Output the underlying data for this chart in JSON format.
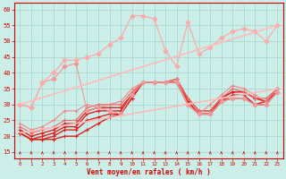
{
  "x": [
    0,
    1,
    2,
    3,
    4,
    5,
    6,
    7,
    8,
    9,
    10,
    11,
    12,
    13,
    14,
    15,
    16,
    17,
    18,
    19,
    20,
    21,
    22,
    23
  ],
  "series": [
    {
      "x": [
        0,
        1,
        2,
        3,
        4,
        5,
        6,
        7,
        8,
        9,
        10,
        11,
        12,
        13,
        14,
        15,
        16,
        17,
        18,
        19,
        20,
        21,
        22,
        23
      ],
      "y": [
        21,
        19,
        19,
        19,
        20,
        20,
        22,
        24,
        26,
        27,
        32,
        37,
        37,
        37,
        37,
        30,
        27,
        27,
        31,
        32,
        32,
        30,
        30,
        34
      ],
      "color": "#dd2222",
      "lw": 1.0,
      "marker": "+"
    },
    {
      "x": [
        0,
        1,
        2,
        3,
        4,
        5,
        6,
        7,
        8,
        9,
        10,
        11,
        12,
        13,
        14,
        15,
        16,
        17,
        18,
        19,
        20,
        21,
        22,
        23
      ],
      "y": [
        21,
        19,
        19,
        20,
        22,
        22,
        25,
        26,
        27,
        27,
        32,
        37,
        37,
        37,
        38,
        31,
        27,
        27,
        31,
        33,
        33,
        30,
        31,
        34
      ],
      "color": "#dd2222",
      "lw": 1.0,
      "marker": "+"
    },
    {
      "x": [
        0,
        1,
        2,
        3,
        4,
        5,
        6,
        7,
        8,
        9,
        10,
        11,
        12,
        13,
        14,
        15,
        16,
        17,
        18,
        19,
        20,
        21,
        22,
        23
      ],
      "y": [
        21,
        19,
        20,
        21,
        23,
        23,
        27,
        28,
        28,
        28,
        33,
        37,
        37,
        37,
        38,
        31,
        27,
        27,
        32,
        34,
        34,
        32,
        31,
        35
      ],
      "color": "#dd2222",
      "lw": 1.0,
      "marker": "+"
    },
    {
      "x": [
        0,
        1,
        2,
        3,
        4,
        5,
        6,
        7,
        8,
        9,
        10,
        11,
        12,
        13,
        14,
        15,
        16,
        17,
        18,
        19,
        20,
        21,
        22,
        23
      ],
      "y": [
        22,
        20,
        21,
        22,
        24,
        24,
        28,
        29,
        29,
        29,
        33,
        37,
        37,
        37,
        38,
        32,
        28,
        28,
        32,
        34,
        34,
        32,
        31,
        35
      ],
      "color": "#dd2222",
      "lw": 1.0,
      "marker": "+"
    },
    {
      "x": [
        0,
        1,
        2,
        3,
        4,
        5,
        6,
        7,
        8,
        9,
        10,
        11,
        12,
        13,
        14,
        15,
        16,
        17,
        18,
        19,
        20,
        21,
        22,
        23
      ],
      "y": [
        23,
        21,
        22,
        23,
        25,
        25,
        29,
        30,
        30,
        30,
        34,
        37,
        37,
        37,
        38,
        32,
        28,
        28,
        32,
        35,
        34,
        32,
        32,
        35
      ],
      "color": "#ee6666",
      "lw": 0.8,
      "marker": "+"
    },
    {
      "x": [
        0,
        1,
        2,
        3,
        4,
        5,
        6,
        7,
        8,
        9,
        10,
        11,
        12,
        13,
        14,
        15,
        16,
        17,
        18,
        19,
        20,
        21,
        22,
        23
      ],
      "y": [
        24,
        22,
        23,
        25,
        28,
        28,
        30,
        29,
        30,
        31,
        35,
        37,
        37,
        37,
        38,
        30,
        27,
        30,
        33,
        36,
        35,
        33,
        31,
        35
      ],
      "color": "#ee8888",
      "lw": 0.8,
      "marker": "+"
    },
    {
      "x": [
        0,
        1,
        2,
        3,
        4,
        5,
        6,
        7,
        8,
        9,
        10,
        11,
        12,
        13,
        14,
        15,
        16,
        17,
        18,
        19,
        20,
        21,
        22,
        23
      ],
      "y": [
        30,
        29,
        37,
        38,
        42,
        43,
        28,
        29,
        28,
        27,
        33,
        37,
        37,
        37,
        37,
        30,
        27,
        27,
        31,
        32,
        32,
        30,
        30,
        34
      ],
      "color": "#ee9999",
      "lw": 0.8,
      "marker": "D"
    },
    {
      "x": [
        0,
        1,
        2,
        3,
        4,
        5,
        6,
        7,
        8,
        9,
        10,
        11,
        12,
        13,
        14,
        15,
        16,
        17,
        18,
        19,
        20,
        21,
        22,
        23
      ],
      "y": [
        30,
        29,
        37,
        40,
        44,
        44,
        45,
        46,
        49,
        51,
        58,
        58,
        57,
        47,
        42,
        56,
        46,
        48,
        51,
        53,
        54,
        53,
        50,
        55
      ],
      "color": "#ffaaaa",
      "lw": 0.9,
      "marker": "D"
    },
    {
      "x": [
        0,
        23
      ],
      "y": [
        21,
        35
      ],
      "color": "#ffbbbb",
      "lw": 1.2,
      "marker": null
    },
    {
      "x": [
        0,
        23
      ],
      "y": [
        30,
        55
      ],
      "color": "#ffbbbb",
      "lw": 1.2,
      "marker": null
    }
  ],
  "bg_color": "#cceee8",
  "grid_color": "#aad8d0",
  "axis_color": "#cc0000",
  "xlabel": "Vent moyen/en rafales ( km/h )",
  "ylim": [
    13,
    62
  ],
  "xlim": [
    -0.5,
    23.5
  ],
  "yticks": [
    15,
    20,
    25,
    30,
    35,
    40,
    45,
    50,
    55,
    60
  ]
}
